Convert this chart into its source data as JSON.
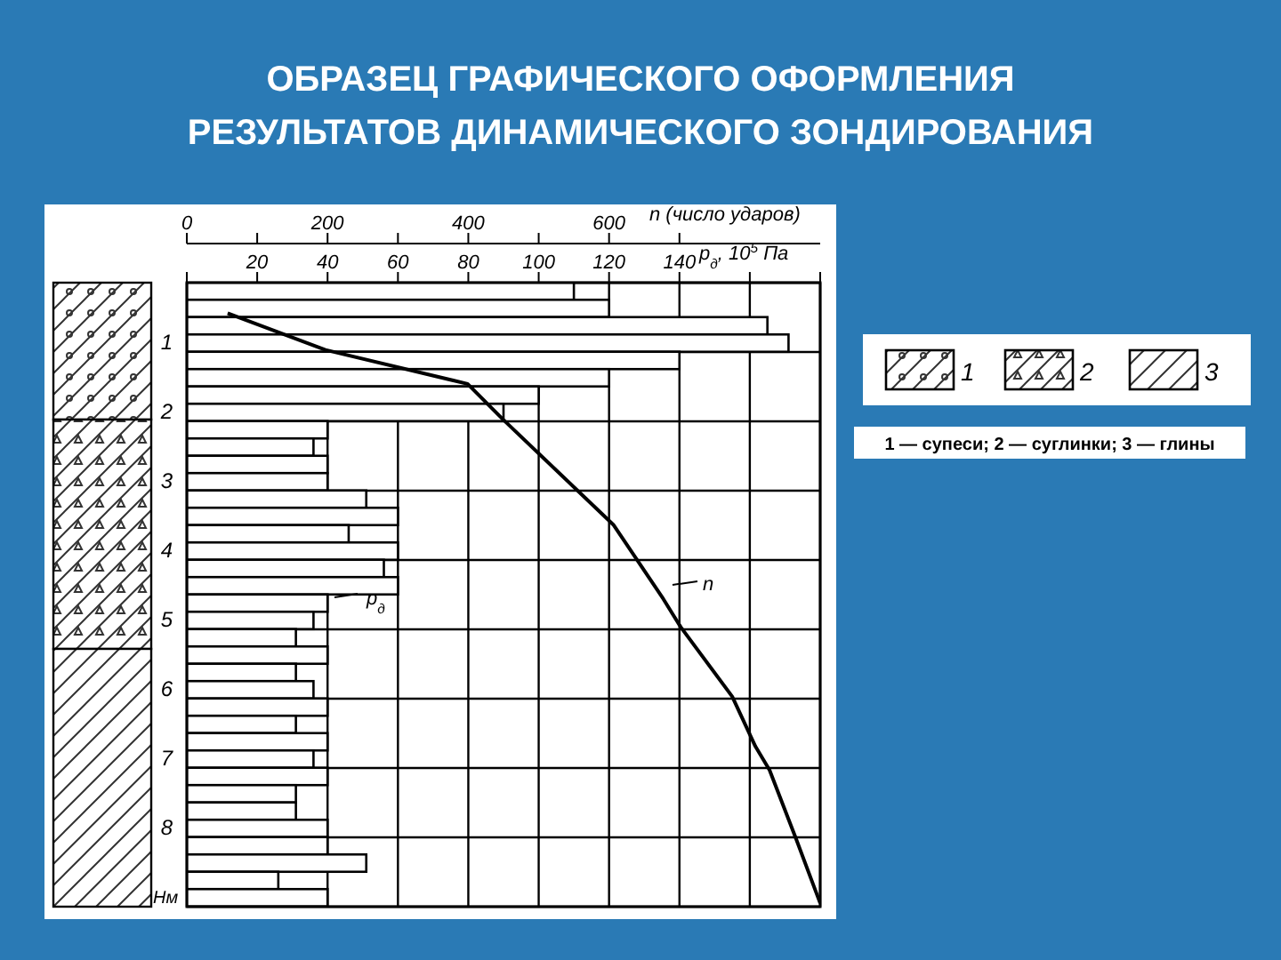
{
  "chart_data": {
    "type": "bar",
    "orientation": "horizontal",
    "title": "ОБРАЗЕЦ ГРАФИЧЕСКОГО ОФОРМЛЕНИЯ РЕЗУЛЬТАТОВ ДИНАМИЧЕСКОГО ЗОНДИРОВАНИЯ",
    "xlim": [
      0,
      180
    ],
    "xticks": [
      {
        "value": 0,
        "label": null
      },
      20,
      40,
      60,
      80,
      100,
      120,
      140,
      {
        "value": 160,
        "label": null
      },
      {
        "value": 180,
        "label": null
      }
    ],
    "xlabel": "p$_{д}$, 10$^{5}$ Па",
    "x2lim": [
      0,
      900
    ],
    "x2ticks": [
      0,
      {
        "value": 100,
        "label": null
      },
      200,
      {
        "value": 300,
        "label": null
      },
      400,
      {
        "value": 500,
        "label": null
      },
      600,
      {
        "value": 700,
        "label": null
      }
    ],
    "x2label": "n (число ударов)",
    "ylim": [
      9,
      0
    ],
    "yticks": [
      1,
      2,
      3,
      4,
      5,
      6,
      7,
      8
    ],
    "ylabel": "Нм",
    "grid": true,
    "marker": "none",
    "series": [
      {
        "type": "bar",
        "color": "#ffffff",
        "x": [
          0.125,
          0.375,
          0.625,
          0.875,
          1.125,
          1.375,
          1.625,
          1.875,
          2.125,
          2.375,
          2.625,
          2.875,
          3.125,
          3.375,
          3.625,
          3.875,
          4.125,
          4.375,
          4.625,
          4.875,
          5.125,
          5.375,
          5.625,
          5.875,
          6.125,
          6.375,
          6.625,
          6.875,
          7.125,
          7.375,
          7.625,
          7.875,
          8.125,
          8.375,
          8.625,
          8.875
        ],
        "values": [
          110,
          120,
          165,
          171,
          140,
          120,
          100,
          90,
          40,
          36,
          40,
          40,
          51,
          60,
          46,
          60,
          56,
          60,
          40,
          36,
          31,
          40,
          31,
          36,
          40,
          31,
          40,
          36,
          40,
          31,
          31,
          40,
          40,
          51,
          26,
          40
        ]
      },
      {
        "type": "line",
        "axis": "x2",
        "color": "#000000",
        "x": [
          0.44,
          0.97,
          1.46,
          1.97,
          3.49,
          4.56,
          4.97,
          5.97,
          6.69,
          7.03,
          8.03,
          8.95
        ],
        "values": [
          58,
          197,
          399,
          449,
          606,
          677,
          702,
          775,
          808,
          828,
          866,
          900
        ]
      }
    ],
    "annotations": [
      "p$_{д}$",
      "n",
      "1",
      "2",
      "3",
      "1 — супеси; 2 — суглинки; 3 — глины"
    ]
  }
}
